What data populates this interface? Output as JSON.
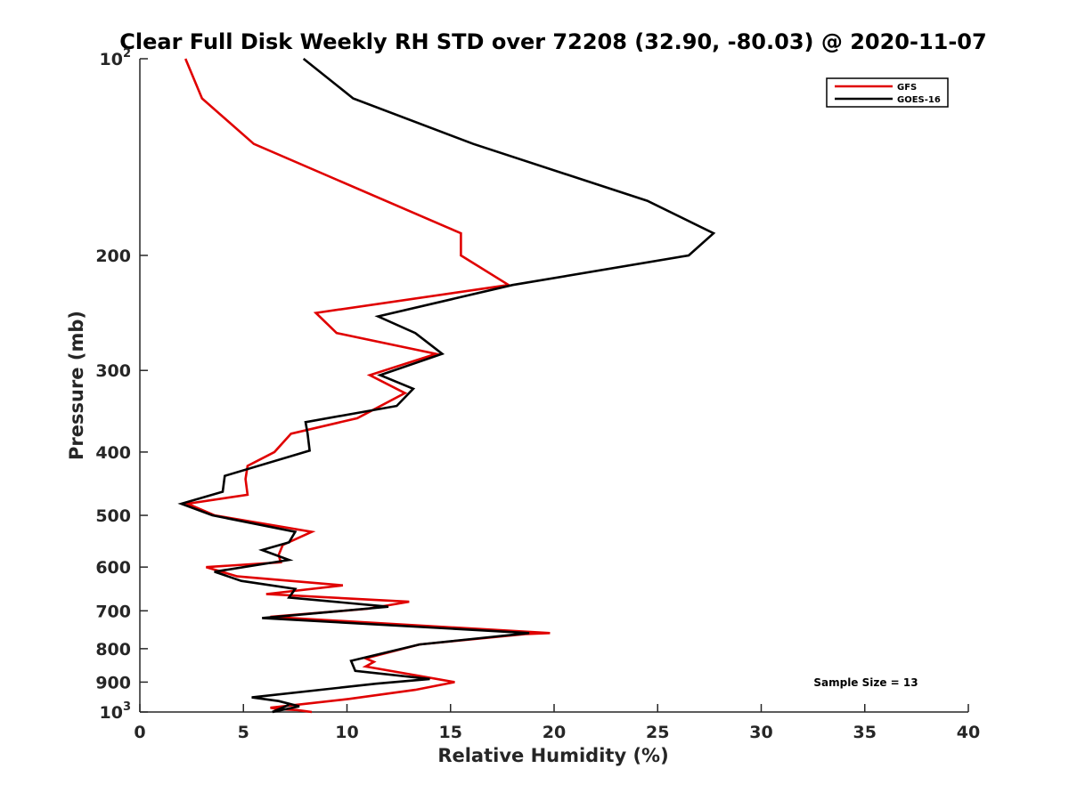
{
  "chart_data": {
    "type": "line",
    "title": "Clear Full Disk Weekly RH STD over 72208 (32.90, -80.03) @ 2020-11-07",
    "xlabel": "Relative Humidity (%)",
    "ylabel": "Pressure (mb)",
    "xlim": [
      0,
      40
    ],
    "ylim": [
      100,
      1000
    ],
    "y_scale": "log",
    "y_reversed": true,
    "x_ticks": [
      "0",
      "5",
      "10",
      "15",
      "20",
      "25",
      "30",
      "35",
      "40"
    ],
    "y_ticks": [
      {
        "value": 100,
        "base": "10",
        "sup": "2"
      },
      {
        "value": 200,
        "base": "200",
        "sup": ""
      },
      {
        "value": 300,
        "base": "300",
        "sup": ""
      },
      {
        "value": 400,
        "base": "400",
        "sup": ""
      },
      {
        "value": 500,
        "base": "500",
        "sup": ""
      },
      {
        "value": 600,
        "base": "600",
        "sup": ""
      },
      {
        "value": 700,
        "base": "700",
        "sup": ""
      },
      {
        "value": 800,
        "base": "800",
        "sup": ""
      },
      {
        "value": 900,
        "base": "900",
        "sup": ""
      },
      {
        "value": 1000,
        "base": "10",
        "sup": "3"
      }
    ],
    "grid": false,
    "legend_position": "top-right",
    "annotation": "Sample Size = 13",
    "series": [
      {
        "name": "GFS",
        "color": "#e00000",
        "x": [
          2.2,
          3.0,
          5.5,
          15.5,
          15.5,
          17.8,
          8.5,
          9.5,
          14.3,
          11.1,
          12.8,
          10.5,
          7.3,
          6.5,
          5.2,
          5.1,
          5.2,
          2.3,
          3.6,
          8.3,
          6.9,
          6.7,
          6.8,
          3.2,
          4.7,
          9.8,
          6.1,
          13.0,
          11.0,
          6.3,
          19.8,
          18.6,
          13.5,
          10.9,
          11.3,
          10.9,
          15.2,
          13.3,
          10.1,
          6.3,
          6.7,
          7.6,
          8.3
        ],
        "y": [
          100,
          115,
          135,
          185,
          200,
          222,
          245,
          263,
          283,
          305,
          325,
          355,
          375,
          400,
          420,
          440,
          465,
          480,
          500,
          530,
          555,
          575,
          590,
          600,
          620,
          640,
          660,
          678,
          695,
          715,
          757,
          760,
          788,
          828,
          838,
          852,
          900,
          925,
          955,
          985,
          990,
          993,
          1000
        ]
      },
      {
        "name": "GOES-16",
        "color": "#000000",
        "x": [
          7.9,
          10.3,
          16.1,
          24.5,
          27.7,
          26.5,
          18.0,
          11.5,
          13.3,
          14.6,
          11.6,
          13.2,
          12.4,
          8.0,
          8.1,
          8.2,
          4.1,
          4.0,
          2.0,
          3.5,
          7.5,
          7.2,
          5.9,
          7.2,
          3.6,
          4.9,
          7.5,
          7.2,
          12.0,
          5.9,
          18.8,
          13.5,
          10.2,
          10.4,
          14.0,
          11.4,
          5.4,
          6.7,
          7.7,
          6.4,
          7.2
        ],
        "y": [
          100,
          115,
          135,
          165,
          185,
          200,
          222,
          248,
          263,
          283,
          305,
          320,
          340,
          360,
          375,
          398,
          435,
          460,
          480,
          500,
          530,
          550,
          565,
          585,
          610,
          630,
          648,
          668,
          690,
          718,
          757,
          788,
          835,
          865,
          890,
          905,
          950,
          962,
          980,
          1000,
          975
        ]
      }
    ]
  }
}
